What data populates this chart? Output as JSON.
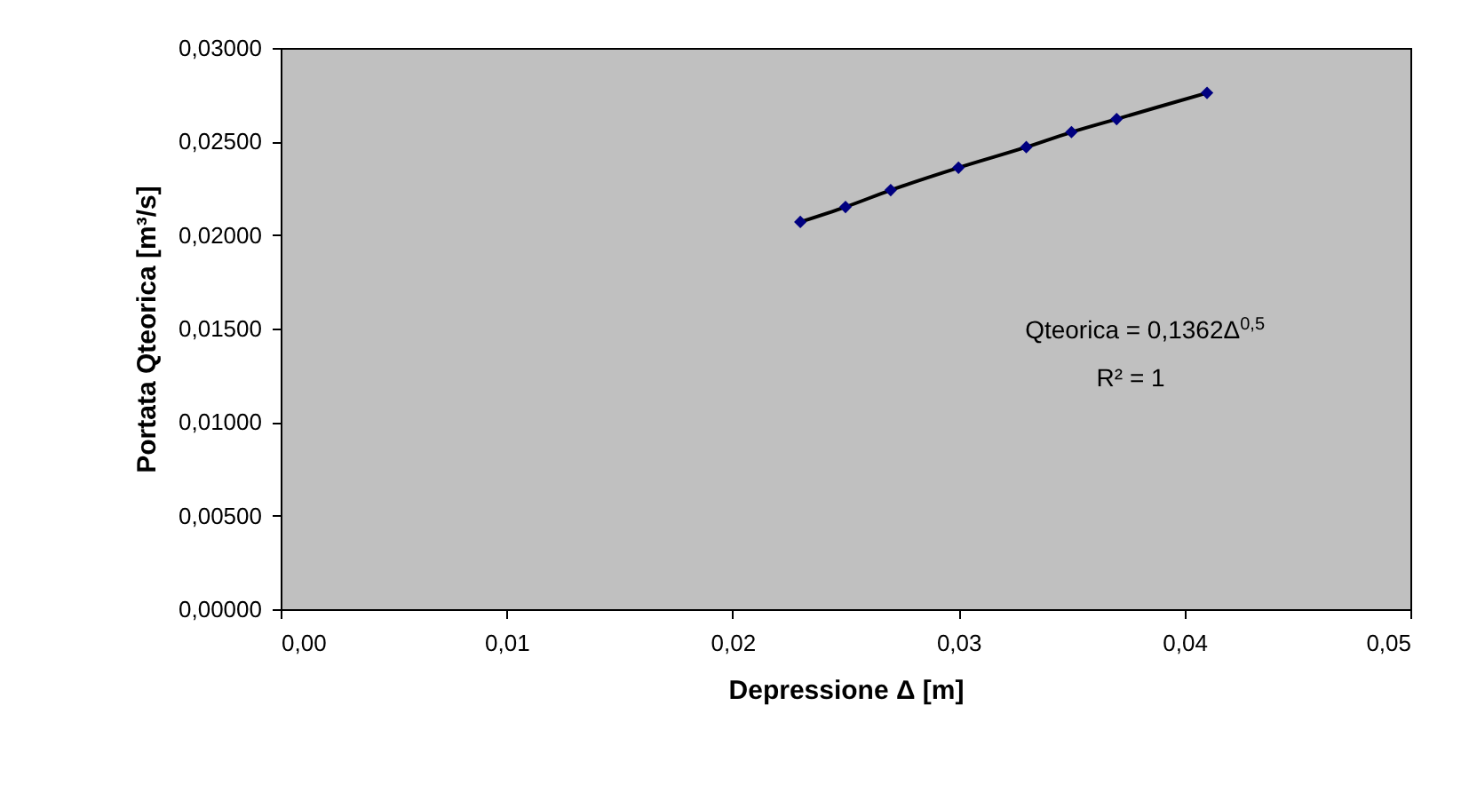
{
  "chart_data": {
    "type": "scatter",
    "xlabel": "Depressione Δ [m]",
    "ylabel": "Portata Qteorica  [m³/s]",
    "x": [
      0.023,
      0.025,
      0.027,
      0.03,
      0.033,
      0.035,
      0.037,
      0.041
    ],
    "series": [
      {
        "color": "#000080",
        "marker": "diamond",
        "values": [
          0.0207,
          0.0215,
          0.0224,
          0.0236,
          0.0247,
          0.0255,
          0.0262,
          0.0276
        ]
      },
      {
        "type": "line",
        "color": "#000000",
        "x": [
          0.023,
          0.025,
          0.027,
          0.03,
          0.033,
          0.035,
          0.037,
          0.041
        ],
        "values": [
          0.0207,
          0.0215,
          0.0224,
          0.0236,
          0.0247,
          0.0255,
          0.0262,
          0.0276
        ]
      }
    ],
    "xlim": [
      0,
      0.05
    ],
    "ylim": [
      0,
      0.03
    ],
    "xticks": [
      {
        "value": 0,
        "label": "0,00"
      },
      {
        "value": 0.01,
        "label": "0,01"
      },
      {
        "value": 0.02,
        "label": "0,02"
      },
      {
        "value": 0.03,
        "label": "0,03"
      },
      {
        "value": 0.04,
        "label": "0,04"
      },
      {
        "value": 0.05,
        "label": "0,05"
      }
    ],
    "yticks": [
      {
        "value": 0,
        "label": "0,00000"
      },
      {
        "value": 0.005,
        "label": "0,00500"
      },
      {
        "value": 0.01,
        "label": "0,01000"
      },
      {
        "value": 0.015,
        "label": "0,01500"
      },
      {
        "value": 0.02,
        "label": "0,02000"
      },
      {
        "value": 0.025,
        "label": "0,02500"
      },
      {
        "value": 0.03,
        "label": "0,03000"
      }
    ],
    "annotations": [
      "Qteorica = 0,1362Δ$^{0,5}$",
      "R² = 1"
    ],
    "grid": false,
    "legend": false
  }
}
